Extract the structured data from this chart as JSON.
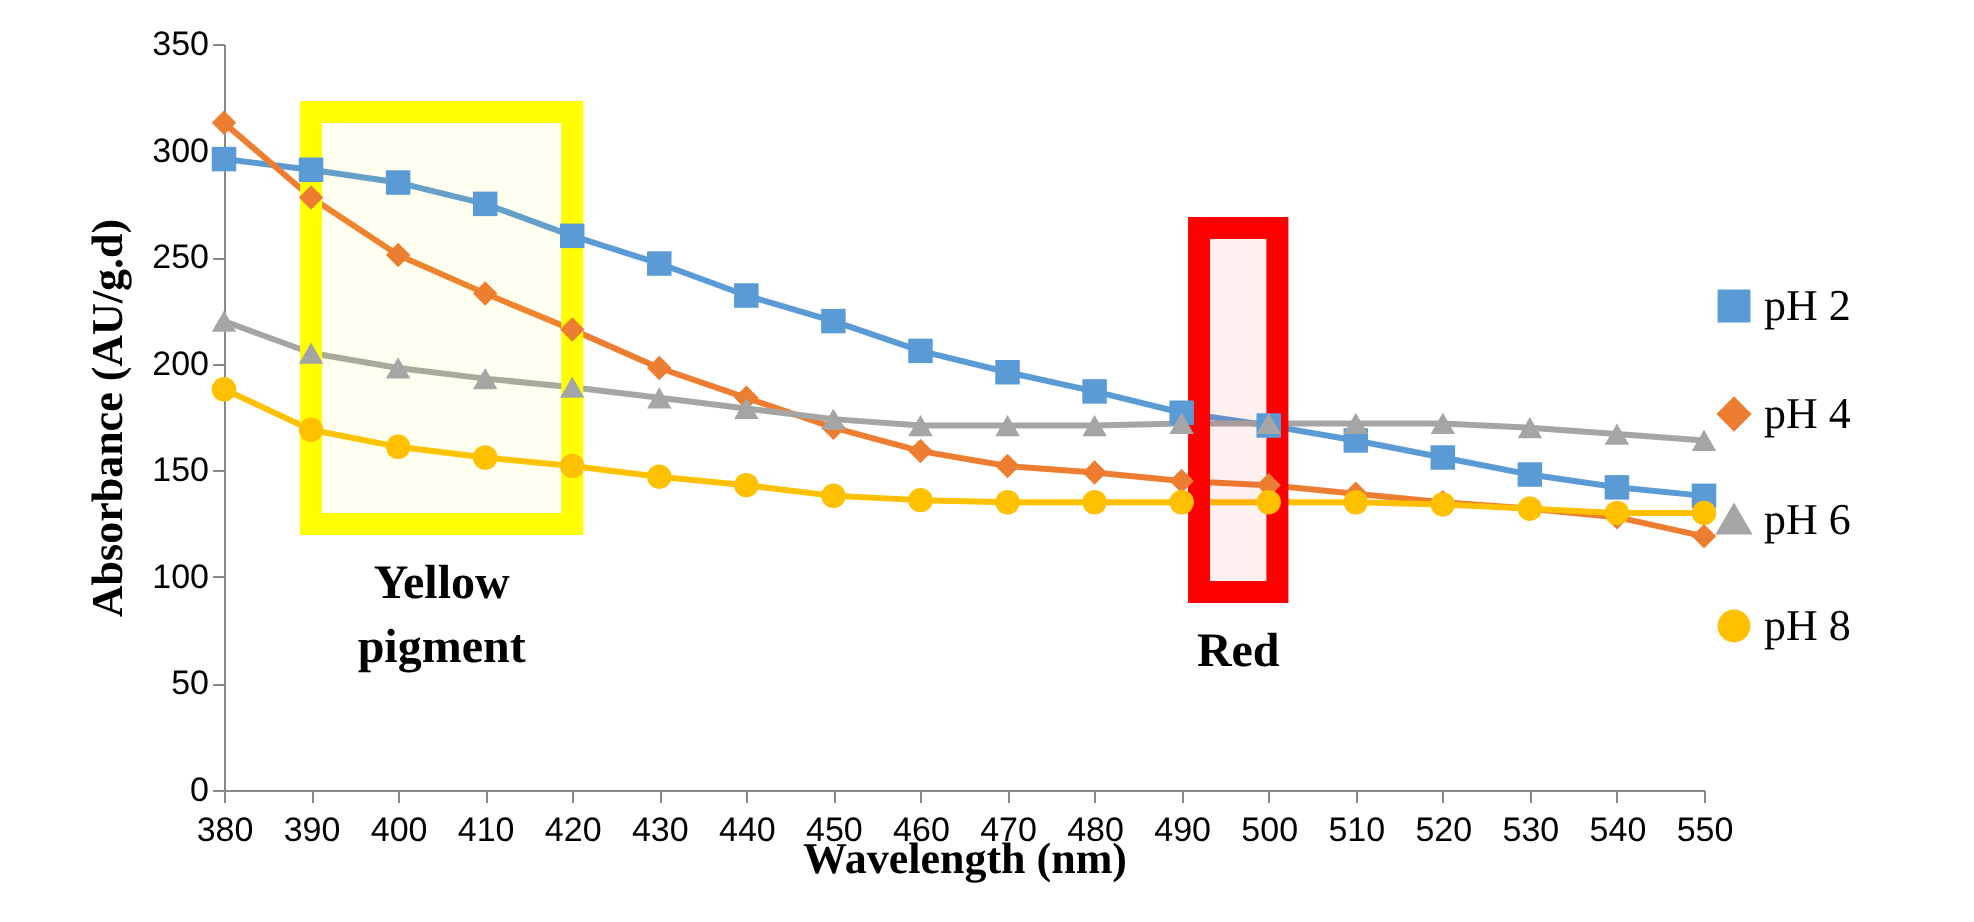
{
  "chart_data": {
    "type": "line",
    "xlabel": "Wavelength (nm)",
    "ylabel": "Absorbance (AU/g.d)",
    "x": [
      380,
      390,
      400,
      410,
      420,
      430,
      440,
      450,
      460,
      470,
      480,
      490,
      500,
      510,
      520,
      530,
      540,
      550
    ],
    "xlim": [
      380,
      550
    ],
    "xticks": [
      380,
      390,
      400,
      410,
      420,
      430,
      440,
      450,
      460,
      470,
      480,
      490,
      500,
      510,
      520,
      530,
      540,
      550
    ],
    "ylim": [
      0,
      350
    ],
    "yticks": [
      0,
      50,
      100,
      150,
      200,
      250,
      300,
      350
    ],
    "series": [
      {
        "name": "pH 2",
        "color": "#5b9bd5",
        "marker": "square",
        "values": [
          296,
          291,
          285,
          275,
          260,
          247,
          232,
          220,
          206,
          196,
          187,
          177,
          171,
          164,
          156,
          148,
          142,
          138
        ]
      },
      {
        "name": "pH 4",
        "color": "#ed7d31",
        "marker": "diamond",
        "values": [
          313,
          278,
          251,
          233,
          216,
          198,
          184,
          170,
          159,
          152,
          149,
          145,
          143,
          139,
          135,
          132,
          128,
          119
        ]
      },
      {
        "name": "pH 6",
        "color": "#a5a5a5",
        "marker": "triangle",
        "values": [
          220,
          205,
          198,
          193,
          189,
          184,
          179,
          174,
          171,
          171,
          171,
          172,
          172,
          172,
          172,
          170,
          167,
          164
        ]
      },
      {
        "name": "pH 8",
        "color": "#ffc000",
        "marker": "circle",
        "values": [
          188,
          169,
          161,
          156,
          152,
          147,
          143,
          138,
          136,
          135,
          135,
          135,
          135,
          135,
          134,
          132,
          130,
          130
        ]
      }
    ],
    "bands": [
      {
        "axis": "x",
        "from": 390,
        "to": 420,
        "label": "Yellow pigment",
        "color": "#ffff00"
      },
      {
        "axis": "x",
        "from": 492,
        "to": 501,
        "label": "Red",
        "color": "#ff0000"
      }
    ],
    "grid": false,
    "legend": "right"
  }
}
